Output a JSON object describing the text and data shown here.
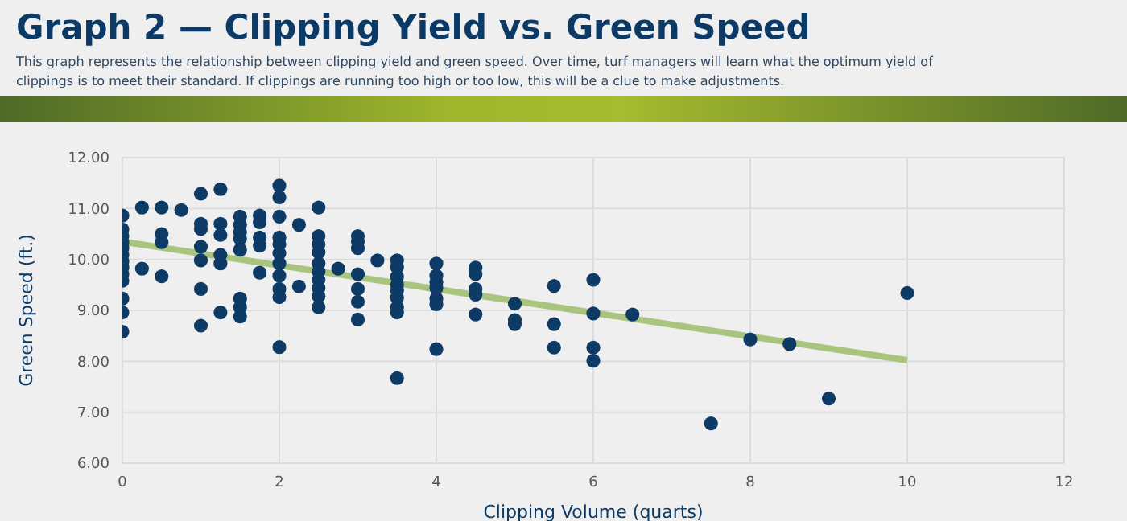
{
  "chart_data": {
    "type": "scatter",
    "title": "Graph 2 — Clipping Yield vs. Green Speed",
    "subtitle": "This graph represents the relationship between clipping yield and green speed. Over time, turf managers will learn what the optimum yield of clippings is to meet their standard. If clippings are running too high or too low, this will be a clue to make adjustments.",
    "xlabel": "Clipping Volume (quarts)",
    "ylabel": "Green Speed (ft.)",
    "xlim": [
      0,
      12
    ],
    "xticks": [
      0,
      2,
      4,
      6,
      8,
      10,
      12
    ],
    "ylim": [
      6,
      12
    ],
    "yticks": [
      {
        "value": 6,
        "label": "6.00"
      },
      {
        "value": 7,
        "label": "7.00"
      },
      {
        "value": 8,
        "label": "8.00"
      },
      {
        "value": 9,
        "label": "9.00"
      },
      {
        "value": 10,
        "label": "10.00"
      },
      {
        "value": 11,
        "label": "11.00"
      },
      {
        "value": 12,
        "label": "12.00"
      }
    ],
    "grid": true,
    "marker": "circle",
    "series": [
      {
        "color": "#0d3b66",
        "x": [
          0,
          0,
          0,
          0,
          0,
          0,
          0,
          0,
          0,
          0,
          0,
          0,
          0,
          0.25,
          0.25,
          0.5,
          0.5,
          0.5,
          0.5,
          0.75,
          1,
          1,
          1,
          1,
          1,
          1,
          1,
          1.25,
          1.25,
          1.25,
          1.25,
          1.25,
          1.25,
          1.5,
          1.5,
          1.5,
          1.5,
          1.5,
          1.5,
          1.5,
          1.5,
          1.75,
          1.75,
          1.75,
          1.75,
          1.75,
          2,
          2,
          2,
          2,
          2,
          2,
          2,
          2,
          2,
          2,
          2,
          2.25,
          2.25,
          2.5,
          2.5,
          2.5,
          2.5,
          2.5,
          2.5,
          2.5,
          2.5,
          2.5,
          2.5,
          2.75,
          3,
          3,
          3,
          3,
          3,
          3,
          3,
          3.25,
          3.5,
          3.5,
          3.5,
          3.5,
          3.5,
          3.5,
          3.5,
          3.5,
          3.5,
          4,
          4,
          4,
          4,
          4,
          4,
          4,
          4.5,
          4.5,
          4.5,
          4.5,
          4.5,
          5,
          5,
          5,
          5.5,
          5.5,
          5.5,
          6,
          6,
          6,
          6,
          6.5,
          7.5,
          8,
          8.5,
          9,
          10
        ],
        "values": [
          10.86,
          10.59,
          10.46,
          10.33,
          10.22,
          10.09,
          9.96,
          9.84,
          9.71,
          9.58,
          9.23,
          8.96,
          8.58,
          11.02,
          9.82,
          11.02,
          10.5,
          10.34,
          9.67,
          10.97,
          11.29,
          10.7,
          10.6,
          10.25,
          9.98,
          9.42,
          8.7,
          11.38,
          10.7,
          10.48,
          10.09,
          9.92,
          8.96,
          10.84,
          10.68,
          10.54,
          10.41,
          10.19,
          9.23,
          9.06,
          8.88,
          10.86,
          10.73,
          10.43,
          10.27,
          9.74,
          11.45,
          11.22,
          10.84,
          10.43,
          10.3,
          10.12,
          9.92,
          9.68,
          9.42,
          9.26,
          8.28,
          10.68,
          9.47,
          11.02,
          10.46,
          10.3,
          10.14,
          9.92,
          9.76,
          9.6,
          9.44,
          9.28,
          9.06,
          9.82,
          10.46,
          10.35,
          10.22,
          9.71,
          9.42,
          9.17,
          8.82,
          9.98,
          9.98,
          9.85,
          9.66,
          9.5,
          9.39,
          9.25,
          9.06,
          8.96,
          7.67,
          9.92,
          9.68,
          9.55,
          9.44,
          9.23,
          9.12,
          8.24,
          9.84,
          9.71,
          9.42,
          9.31,
          8.92,
          9.13,
          8.81,
          8.73,
          9.48,
          8.73,
          8.27,
          9.6,
          8.94,
          8.27,
          8.01,
          8.92,
          6.78,
          8.43,
          8.34,
          7.27,
          9.34
        ]
      },
      {
        "type": "line",
        "marker": "none",
        "color": "#a9c47f",
        "x": [
          0,
          10
        ],
        "values": [
          10.35,
          8.02
        ]
      }
    ]
  }
}
